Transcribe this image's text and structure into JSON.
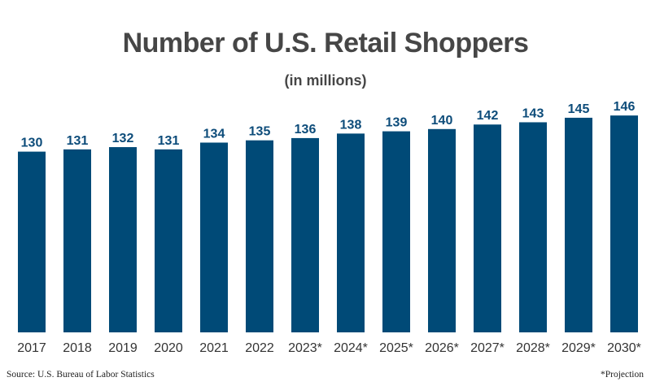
{
  "chart_data": {
    "type": "bar",
    "title": "Number of U.S. Retail Shoppers",
    "subtitle": "(in millions)",
    "categories": [
      "2017",
      "2018",
      "2019",
      "2020",
      "2021",
      "2022",
      "2023*",
      "2024*",
      "2025*",
      "2026*",
      "2027*",
      "2028*",
      "2029*",
      "2030*"
    ],
    "values": [
      130,
      131,
      132,
      131,
      134,
      135,
      136,
      138,
      139,
      140,
      142,
      143,
      145,
      146
    ],
    "ylim": [
      50,
      150
    ],
    "grid": false,
    "bar_color": "#004a77",
    "label_color": "#0d4c7a",
    "source": "Source: U.S. Bureau of Labor Statistics",
    "note": "*Projection"
  }
}
